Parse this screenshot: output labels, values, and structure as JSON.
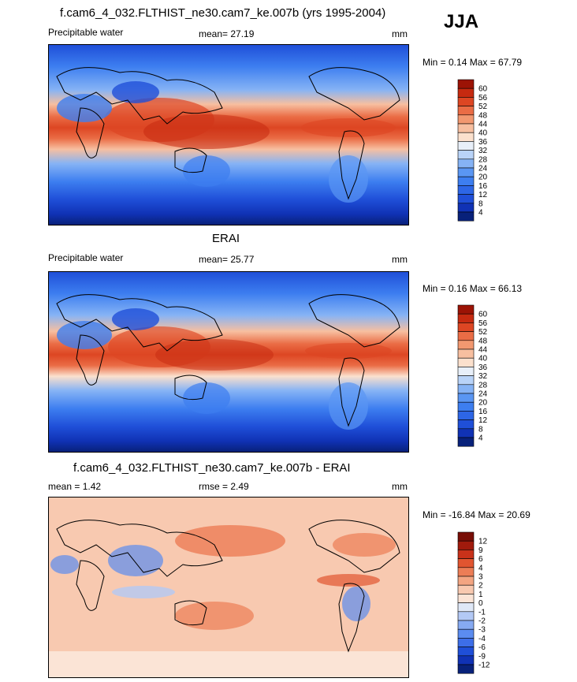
{
  "season": "JJA",
  "panels": [
    {
      "title": "f.cam6_4_032.FLTHIST_ne30.cam7_ke.007b (yrs 1995-2004)",
      "left_label": "Precipitable water",
      "center_label": "mean=  27.19",
      "units": "mm",
      "minmax": "Min =   0.14 Max =  67.79"
    },
    {
      "title": "ERAI",
      "left_label": "Precipitable water",
      "center_label": "mean=  25.77",
      "units": "mm",
      "minmax": "Min =   0.16 Max =  66.13"
    },
    {
      "title": "f.cam6_4_032.FLTHIST_ne30.cam7_ke.007b - ERAI",
      "left_label": "mean =   1.42",
      "center_label": "rmse =   2.49",
      "units": "mm",
      "minmax": "Min = -16.84 Max =  20.69"
    }
  ],
  "chart_data": [
    {
      "type": "heatmap",
      "title": "f.cam6_4_032.FLTHIST_ne30.cam7_ke.007b (yrs 1995-2004)",
      "variable": "Precipitable water",
      "units": "mm",
      "mean": 27.19,
      "min": 0.14,
      "max": 67.79,
      "colorbar_levels": [
        4,
        8,
        12,
        16,
        20,
        24,
        28,
        32,
        36,
        40,
        44,
        48,
        52,
        56,
        60
      ],
      "colorbar_colors": [
        "#08217a",
        "#1032b5",
        "#1f4fd8",
        "#2d66e6",
        "#3d7ef0",
        "#5a96f3",
        "#86b3f5",
        "#b9d3f8",
        "#e8eff9",
        "#fbe0cd",
        "#f7bfa0",
        "#f29870",
        "#ea6c45",
        "#dd4623",
        "#c62a10",
        "#9c1305"
      ]
    },
    {
      "type": "heatmap",
      "title": "ERAI",
      "variable": "Precipitable water",
      "units": "mm",
      "mean": 25.77,
      "min": 0.16,
      "max": 66.13,
      "colorbar_levels": [
        4,
        8,
        12,
        16,
        20,
        24,
        28,
        32,
        36,
        40,
        44,
        48,
        52,
        56,
        60
      ],
      "colorbar_colors": [
        "#08217a",
        "#1032b5",
        "#1f4fd8",
        "#2d66e6",
        "#3d7ef0",
        "#5a96f3",
        "#86b3f5",
        "#b9d3f8",
        "#e8eff9",
        "#fbe0cd",
        "#f7bfa0",
        "#f29870",
        "#ea6c45",
        "#dd4623",
        "#c62a10",
        "#9c1305"
      ]
    },
    {
      "type": "heatmap",
      "title": "f.cam6_4_032.FLTHIST_ne30.cam7_ke.007b - ERAI",
      "units": "mm",
      "mean": 1.42,
      "rmse": 2.49,
      "min": -16.84,
      "max": 20.69,
      "colorbar_levels": [
        -12,
        -9,
        -6,
        -4,
        -3,
        -2,
        -1,
        0,
        1,
        2,
        3,
        4,
        6,
        9,
        12
      ],
      "colorbar_colors": [
        "#08217a",
        "#1032b5",
        "#1f4fd8",
        "#3d6ee8",
        "#5b8cf0",
        "#86aaf2",
        "#b3c9f5",
        "#dfe8f7",
        "#fbe4d6",
        "#f8c9b0",
        "#f3a582",
        "#ec7d56",
        "#e15530",
        "#c8321a",
        "#a01a0c",
        "#780d05"
      ]
    }
  ]
}
